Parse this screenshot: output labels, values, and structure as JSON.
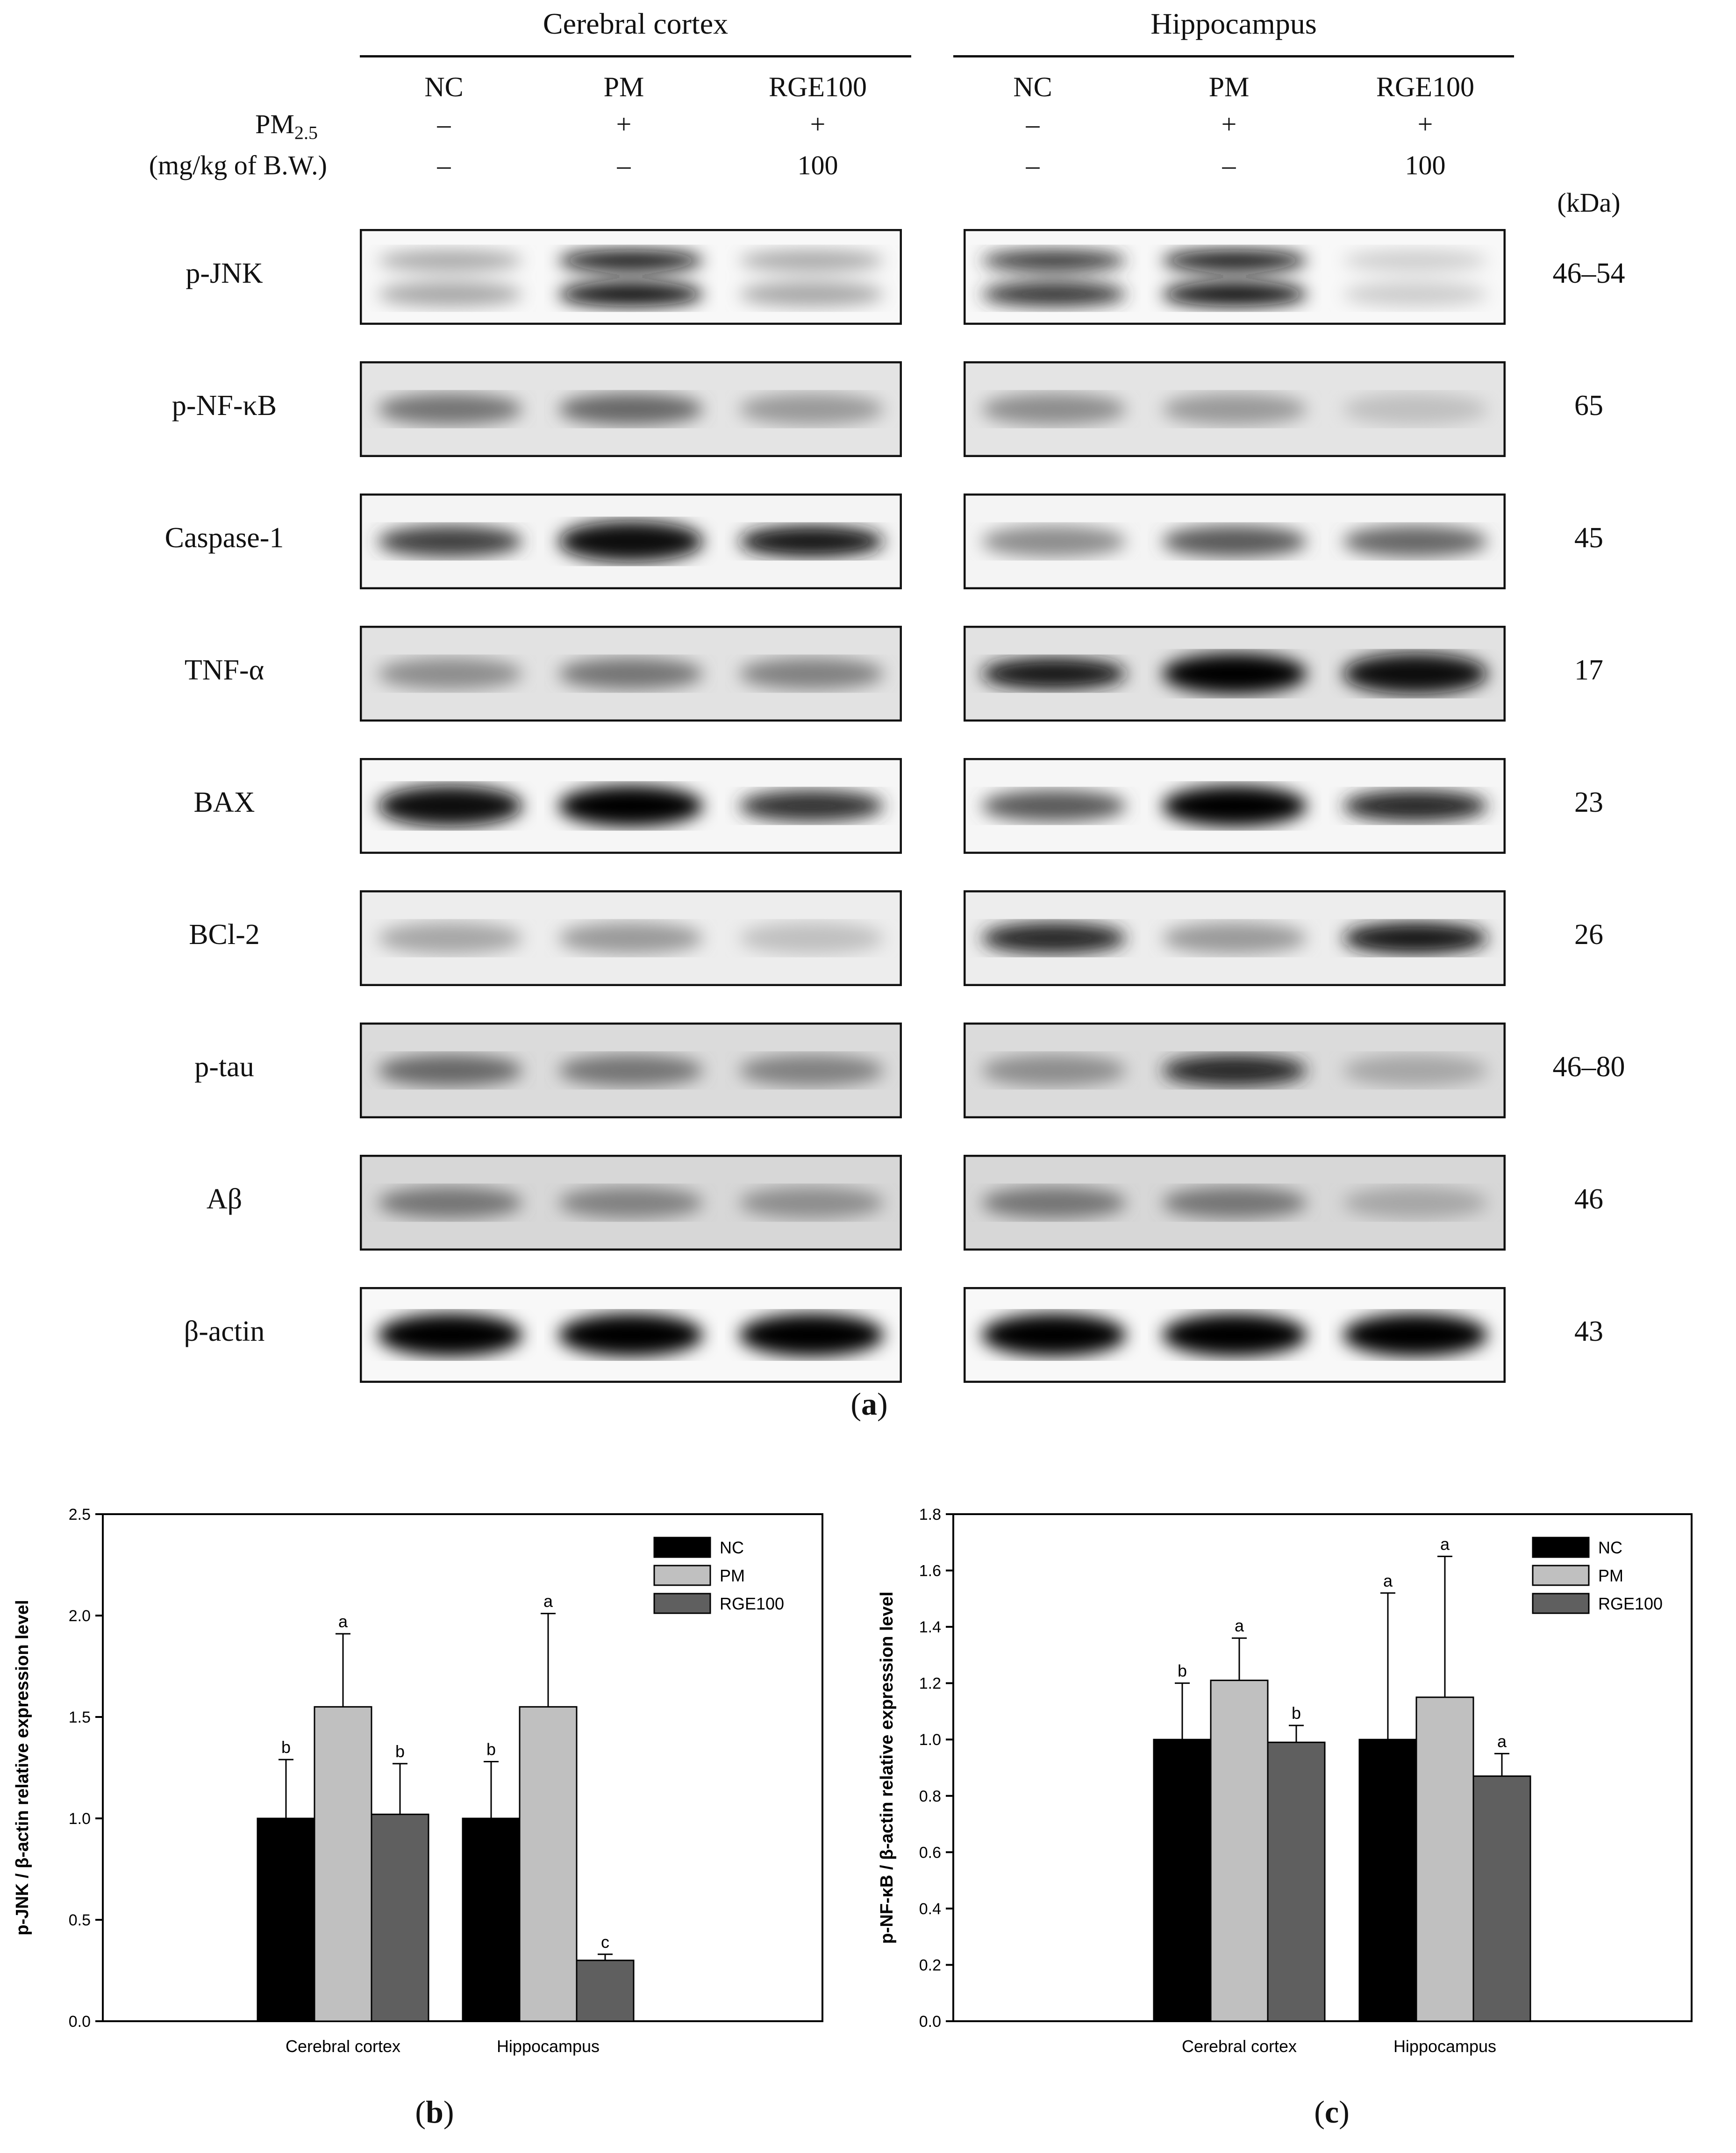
{
  "figure": {
    "panel_a": {
      "regions": [
        "Cerebral cortex",
        "Hippocampus"
      ],
      "groups": [
        "NC",
        "PM",
        "RGE100"
      ],
      "treatment_row": {
        "label": "PM",
        "subscript": "2.5",
        "values": [
          "–",
          "+",
          "+"
        ]
      },
      "dose_row": {
        "label": "(mg/kg of B.W.)",
        "values": [
          "–",
          "–",
          "100"
        ]
      },
      "kda_header": "(kDa)",
      "proteins": [
        {
          "name": "p-JNK",
          "kda": "46–54"
        },
        {
          "name": "p-NF-κB",
          "kda": "65"
        },
        {
          "name": "Caspase-1",
          "kda": "45"
        },
        {
          "name": "TNF-α",
          "kda": "17"
        },
        {
          "name": "BAX",
          "kda": "23"
        },
        {
          "name": "BCl-2",
          "kda": "26"
        },
        {
          "name": "p-tau",
          "kda": "46–80"
        },
        {
          "name": "Aβ",
          "kda": "46"
        },
        {
          "name": "β-actin",
          "kda": "43"
        }
      ],
      "caption_letter": "a"
    },
    "caption_b": "b",
    "caption_c": "c"
  },
  "chart_data": [
    {
      "type": "bar",
      "panel": "b",
      "categories": [
        "Cerebral cortex",
        "Hippocampus"
      ],
      "series": [
        {
          "name": "NC",
          "values": [
            1.0,
            1.0
          ],
          "errors": [
            0.29,
            0.28
          ],
          "letters": [
            "b",
            "b"
          ],
          "color": "#000000"
        },
        {
          "name": "PM",
          "values": [
            1.55,
            1.55
          ],
          "errors": [
            0.36,
            0.46
          ],
          "letters": [
            "a",
            "a"
          ],
          "color": "#c0c0c0"
        },
        {
          "name": "RGE100",
          "values": [
            1.02,
            0.3
          ],
          "errors": [
            0.25,
            0.03
          ],
          "letters": [
            "b",
            "c"
          ],
          "color": "#5f5f5f"
        }
      ],
      "ylabel": "p-JNK / β-actin relative expression level",
      "ylim": [
        0,
        2.5
      ],
      "yticks": [
        "0.0",
        "0.5",
        "1.0",
        "1.5",
        "2.0",
        "2.5"
      ],
      "legend": "top-right"
    },
    {
      "type": "bar",
      "panel": "c",
      "categories": [
        "Cerebral cortex",
        "Hippocampus"
      ],
      "series": [
        {
          "name": "NC",
          "values": [
            1.0,
            1.0
          ],
          "errors": [
            0.2,
            0.52
          ],
          "letters": [
            "b",
            "a"
          ],
          "color": "#000000"
        },
        {
          "name": "PM",
          "values": [
            1.21,
            1.15
          ],
          "errors": [
            0.15,
            0.5
          ],
          "letters": [
            "a",
            "a"
          ],
          "color": "#c0c0c0"
        },
        {
          "name": "RGE100",
          "values": [
            0.99,
            0.87
          ],
          "errors": [
            0.06,
            0.08
          ],
          "letters": [
            "b",
            "a"
          ],
          "color": "#5f5f5f"
        }
      ],
      "ylabel": "p-NF-κB / β-actin relative expression level",
      "ylim": [
        0,
        1.8
      ],
      "yticks": [
        "0.0",
        "0.2",
        "0.4",
        "0.6",
        "0.8",
        "1.0",
        "1.2",
        "1.4",
        "1.6",
        "1.8"
      ],
      "legend": "top-right"
    }
  ]
}
